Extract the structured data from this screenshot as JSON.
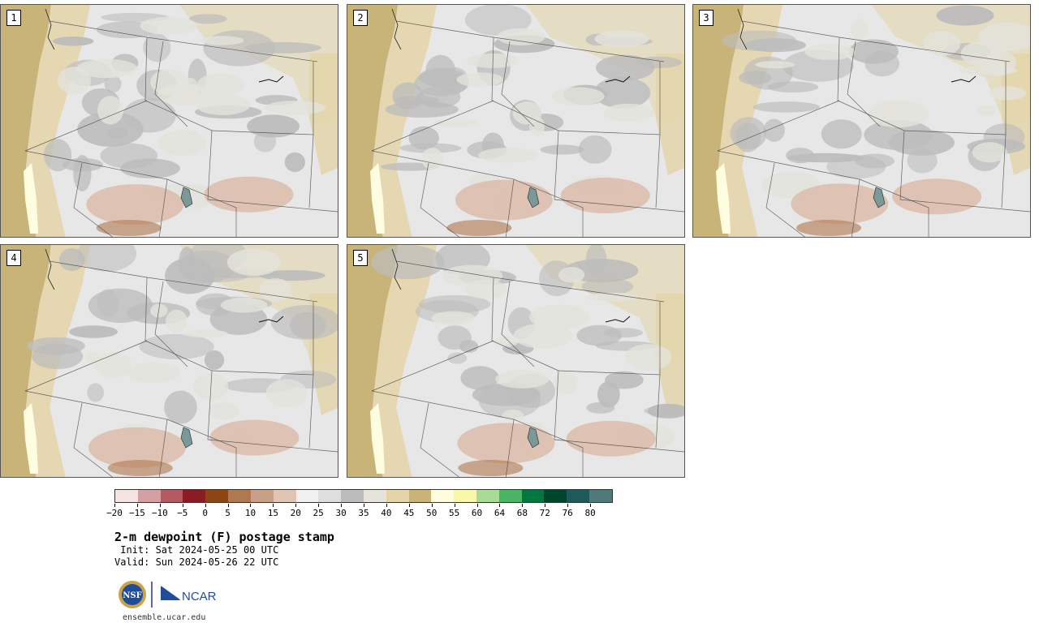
{
  "panels": [
    {
      "label": "1"
    },
    {
      "label": "2"
    },
    {
      "label": "3"
    },
    {
      "label": "4"
    },
    {
      "label": "5"
    }
  ],
  "legend": {
    "colors": [
      "#f4e4e4",
      "#d4a0a4",
      "#b45a60",
      "#8c1c24",
      "#8c4614",
      "#b07850",
      "#c8a088",
      "#e0c4b4",
      "#f0f0f0",
      "#dedede",
      "#bcbcbc",
      "#e4e4dc",
      "#e4d4a8",
      "#c8b478",
      "#fffde0",
      "#f8f8a8",
      "#a8dc94",
      "#48b464",
      "#007840",
      "#00462c",
      "#1e5a5a",
      "#4e7a7a"
    ],
    "ticks": [
      "−20",
      "−15",
      "−10",
      "−5",
      "0",
      "5",
      "10",
      "15",
      "20",
      "25",
      "30",
      "35",
      "40",
      "45",
      "50",
      "55",
      "60",
      "64",
      "68",
      "72",
      "76",
      "80"
    ]
  },
  "map_colors": {
    "ocean": "#c8b478",
    "base": "#e7e7e7",
    "gray": "#bcbcbc",
    "light_tan": "#e4d4a8",
    "pale": "#e4e4dc",
    "brown": "#dcbcac",
    "dark_brown": "#b07850",
    "cream": "#fffde0",
    "borders": "#444444"
  },
  "title": "2-m dewpoint (F) postage stamp",
  "init": " Init: Sat 2024-05-25 00 UTC",
  "valid": "Valid: Sun 2024-05-26 22 UTC",
  "logos": {
    "nsf": "NSF",
    "ncar": "NCAR"
  },
  "url": "ensemble.ucar.edu"
}
